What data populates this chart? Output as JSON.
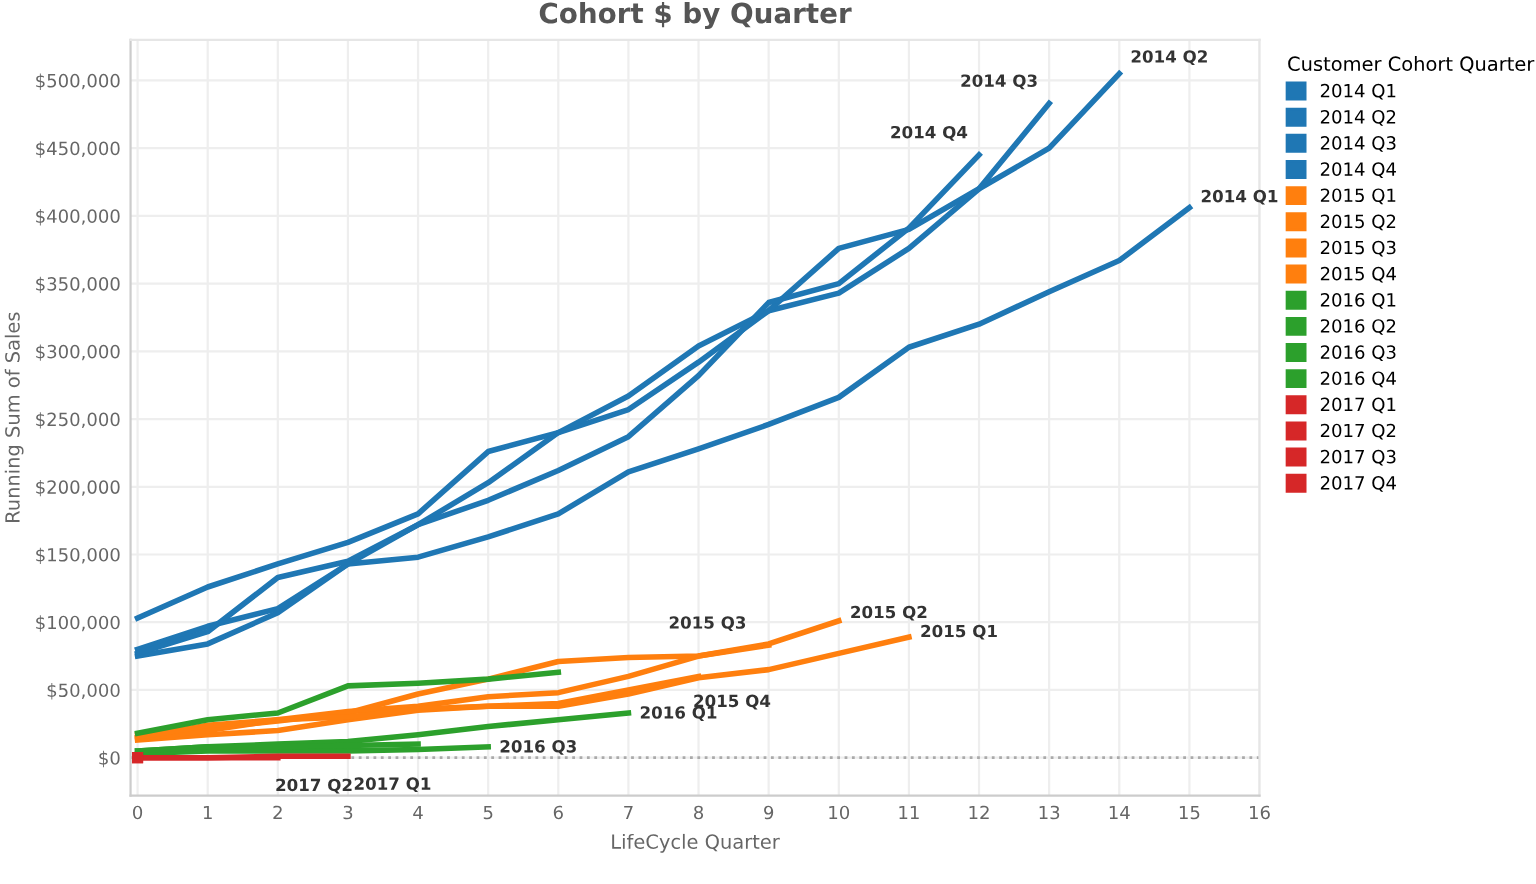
{
  "chart_data": {
    "type": "line",
    "title": "Cohort $ by Quarter",
    "xlabel": "LifeCycle Quarter",
    "ylabel": "Running Sum of Sales",
    "legend_title": "Customer Cohort Quarter",
    "legend": "right",
    "grid": true,
    "marker": "none",
    "line_style": "solid",
    "xlim": [
      -0.1,
      16
    ],
    "xticks": [
      0,
      1,
      2,
      3,
      4,
      5,
      6,
      7,
      8,
      9,
      10,
      11,
      12,
      13,
      14,
      15,
      16
    ],
    "ylim": [
      -28000,
      530000
    ],
    "yticks": [
      {
        "value": 0,
        "label": "$0"
      },
      {
        "value": 50000,
        "label": "$50,000"
      },
      {
        "value": 100000,
        "label": "$100,000"
      },
      {
        "value": 150000,
        "label": "$150,000"
      },
      {
        "value": 200000,
        "label": "$200,000"
      },
      {
        "value": 250000,
        "label": "$250,000"
      },
      {
        "value": 300000,
        "label": "$300,000"
      },
      {
        "value": 350000,
        "label": "$350,000"
      },
      {
        "value": 400000,
        "label": "$400,000"
      },
      {
        "value": 450000,
        "label": "$450,000"
      },
      {
        "value": 500000,
        "label": "$500,000"
      }
    ],
    "ref_lines": [
      {
        "axis": "y",
        "value": 0,
        "line_style": "dotted",
        "color": "#aaaaaa"
      }
    ],
    "series": [
      {
        "name": "2014 Q1",
        "color": "#1f77b4",
        "x": [
          0,
          1,
          2,
          3,
          4,
          5,
          6,
          7,
          8,
          9,
          10,
          11,
          12,
          13,
          14,
          15
        ],
        "values": [
          75000,
          84000,
          107000,
          143000,
          148000,
          163000,
          180000,
          211000,
          228000,
          246000,
          266000,
          303000,
          320000,
          344000,
          367000,
          406000
        ]
      },
      {
        "name": "2014 Q2",
        "color": "#1f77b4",
        "x": [
          0,
          1,
          2,
          3,
          4,
          5,
          6,
          7,
          8,
          9,
          10,
          11,
          12,
          13,
          14
        ],
        "values": [
          103000,
          126000,
          143000,
          159000,
          180000,
          226000,
          240000,
          257000,
          292000,
          330000,
          343000,
          376000,
          420000,
          450000,
          505000
        ]
      },
      {
        "name": "2014 Q3",
        "color": "#1f77b4",
        "x": [
          0,
          1,
          2,
          3,
          4,
          5,
          6,
          7,
          8,
          9,
          10,
          11,
          12,
          13
        ],
        "values": [
          80000,
          97000,
          110000,
          143000,
          172000,
          203000,
          240000,
          267000,
          304000,
          330000,
          376000,
          390000,
          420000,
          483000
        ]
      },
      {
        "name": "2014 Q4",
        "color": "#1f77b4",
        "x": [
          0,
          1,
          2,
          3,
          4,
          5,
          6,
          7,
          8,
          9,
          10,
          11,
          12
        ],
        "values": [
          77000,
          93000,
          133000,
          145000,
          172000,
          190000,
          212000,
          237000,
          282000,
          336000,
          350000,
          391000,
          445000
        ]
      },
      {
        "name": "2015 Q1",
        "color": "#ff7f0e",
        "x": [
          0,
          1,
          2,
          3,
          4,
          5,
          6,
          7,
          8,
          9,
          10,
          11
        ],
        "values": [
          13000,
          17000,
          20000,
          28000,
          35000,
          38000,
          38000,
          47000,
          59000,
          65000,
          77000,
          89000
        ]
      },
      {
        "name": "2015 Q2",
        "color": "#ff7f0e",
        "x": [
          0,
          1,
          2,
          3,
          4,
          5,
          6,
          7,
          8,
          9,
          10
        ],
        "values": [
          17000,
          22000,
          27000,
          33000,
          47000,
          58000,
          71000,
          74000,
          75000,
          84000,
          101000
        ]
      },
      {
        "name": "2015 Q3",
        "color": "#ff7f0e",
        "x": [
          0,
          1,
          2,
          3,
          4,
          5,
          6,
          7,
          8,
          9
        ],
        "values": [
          14000,
          20000,
          28000,
          34000,
          38000,
          45000,
          48000,
          60000,
          75000,
          83000
        ]
      },
      {
        "name": "2015 Q4",
        "color": "#ff7f0e",
        "x": [
          0,
          1,
          2,
          3,
          4,
          5,
          6,
          7,
          8
        ],
        "values": [
          15000,
          24000,
          28000,
          30000,
          36000,
          38000,
          40000,
          50000,
          60000
        ]
      },
      {
        "name": "2016 Q1",
        "color": "#2ca02c",
        "x": [
          0,
          1,
          2,
          3,
          4,
          5,
          6,
          7
        ],
        "values": [
          5000,
          8000,
          10000,
          12000,
          17000,
          23000,
          28000,
          33000
        ]
      },
      {
        "name": "2016 Q2",
        "color": "#2ca02c",
        "x": [
          0,
          1,
          2,
          3,
          4,
          5,
          6
        ],
        "values": [
          18000,
          28000,
          33000,
          53000,
          55000,
          58000,
          63000
        ]
      },
      {
        "name": "2016 Q3",
        "color": "#2ca02c",
        "x": [
          0,
          1,
          2,
          3,
          4,
          5
        ],
        "values": [
          3000,
          5000,
          5000,
          5000,
          6000,
          8000
        ]
      },
      {
        "name": "2016 Q4",
        "color": "#2ca02c",
        "x": [
          0,
          1,
          2,
          3,
          4
        ],
        "values": [
          5000,
          8000,
          8000,
          9000,
          10000
        ]
      },
      {
        "name": "2017 Q1",
        "color": "#d62728",
        "x": [
          0,
          1,
          2,
          3
        ],
        "values": [
          0,
          0,
          1000,
          1000
        ]
      },
      {
        "name": "2017 Q2",
        "color": "#d62728",
        "x": [
          0,
          1,
          2
        ],
        "values": [
          0,
          0,
          0
        ]
      },
      {
        "name": "2017 Q3",
        "color": "#d62728",
        "x": [
          0
        ],
        "values": [
          0
        ],
        "marker": "square"
      },
      {
        "name": "2017 Q4",
        "color": "#d62728",
        "x": [
          0
        ],
        "values": [
          0
        ],
        "marker": "square"
      }
    ],
    "annotations": [
      {
        "text": "2014 Q1",
        "x": 15,
        "y": 406000
      },
      {
        "text": "2014 Q2",
        "x": 14,
        "y": 505000
      },
      {
        "text": "2014 Q3",
        "x": 13,
        "y": 483000
      },
      {
        "text": "2014 Q4",
        "x": 12,
        "y": 445000
      },
      {
        "text": "2015 Q1",
        "x": 11,
        "y": 89000
      },
      {
        "text": "2015 Q2",
        "x": 10,
        "y": 101000
      },
      {
        "text": "2015 Q3",
        "x": 9,
        "y": 83000
      },
      {
        "text": "2015 Q4",
        "x": 8,
        "y": 60000
      },
      {
        "text": "2016 Q1",
        "x": 7,
        "y": 33000
      },
      {
        "text": "2016 Q3",
        "x": 5,
        "y": 8000
      },
      {
        "text": "2017 Q1",
        "x": 3,
        "y": 1000
      },
      {
        "text": "2017 Q2",
        "x": 2,
        "y": 0
      }
    ]
  }
}
